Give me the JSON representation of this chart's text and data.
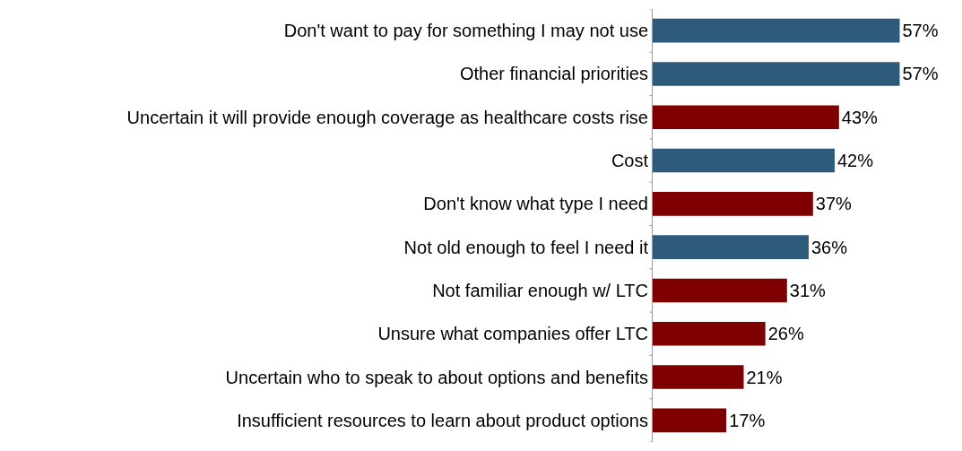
{
  "chart_data": {
    "type": "bar",
    "orientation": "horizontal",
    "categories": [
      "Don't want to pay for something I may not use",
      "Other financial priorities",
      "Uncertain it will provide enough coverage as healthcare costs rise",
      "Cost",
      "Don't know what type I need",
      "Not old enough to feel I need it",
      "Not familiar enough w/ LTC",
      "Unsure what companies offer LTC",
      "Uncertain who to speak to about options and benefits",
      "Insufficient resources to learn about product options"
    ],
    "values": [
      57,
      57,
      43,
      42,
      37,
      36,
      31,
      26,
      21,
      17
    ],
    "value_labels": [
      "57%",
      "57%",
      "43%",
      "42%",
      "37%",
      "36%",
      "31%",
      "26%",
      "21%",
      "17%"
    ],
    "colors": [
      "#2e5a7c",
      "#2e5a7c",
      "#7f0000",
      "#2e5a7c",
      "#7f0000",
      "#2e5a7c",
      "#7f0000",
      "#7f0000",
      "#7f0000",
      "#7f0000"
    ],
    "tick_labels": "y",
    "grid": false
  }
}
